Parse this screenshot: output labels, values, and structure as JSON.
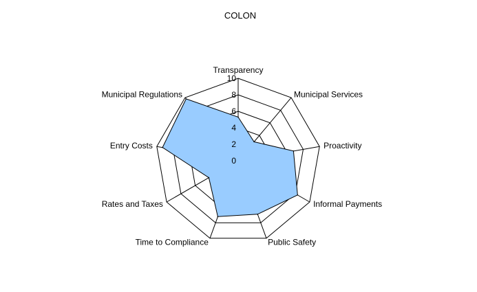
{
  "chart_data": {
    "type": "radar",
    "title": "COLON",
    "categories": [
      "Transparency",
      "Municipal Services",
      "Proactivity",
      "Informal Payments",
      "Public Safety",
      "Time to Compliance",
      "Rates and Taxes",
      "Entry Costs",
      "Municipal Regulations"
    ],
    "series": [
      {
        "values": [
          5.3,
          3.0,
          6.8,
          8.3,
          6.9,
          7.2,
          4.1,
          9.3,
          9.8
        ],
        "color": "#99ccff"
      }
    ],
    "rlim": [
      0,
      10
    ],
    "ticks": [
      "0",
      "2",
      "4",
      "6",
      "8",
      "10"
    ],
    "grid": true,
    "grid_color": "#000000"
  }
}
